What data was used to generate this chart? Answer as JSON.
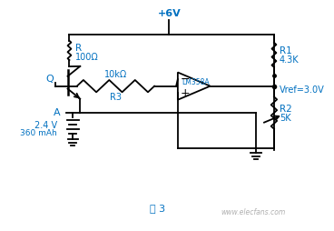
{
  "background_color": "#ffffff",
  "line_color": "#000000",
  "text_color": "#0070c0",
  "fig_label": "图 3",
  "watermark": "www.elecfans.com",
  "R_label1": "R",
  "R_label2": "100Ω",
  "R1_label1": "R1",
  "R1_label2": "4.3K",
  "R2_label1": "R2",
  "R2_label2": "5K",
  "R3_label1": "10kΩ",
  "R3_label2": "R3",
  "Q_label": "Q",
  "A_label": "A",
  "opamp_label": "LM358A",
  "vcc_label": "+6V",
  "vref_label": "Vref=3.0V",
  "bat_v": "2.4 V",
  "bat_c": "360 mAh"
}
